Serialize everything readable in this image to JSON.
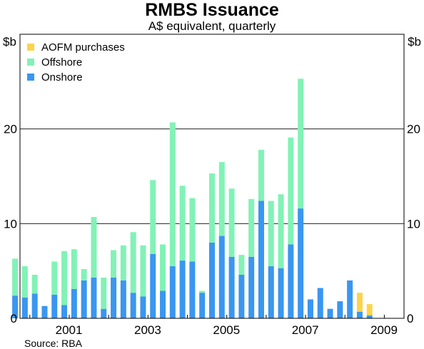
{
  "chart_data": {
    "type": "bar",
    "stacked": true,
    "title": "RMBS Issuance",
    "subtitle": "A$ equivalent, quarterly",
    "ylabel_left": "$b",
    "ylabel_right": "$b",
    "ylim": [
      0,
      30
    ],
    "yticks": [
      0,
      10,
      20
    ],
    "grid": true,
    "legend_position": "top-left",
    "x_year_range": [
      1999.75,
      2009.5
    ],
    "xticks": [
      "2001",
      "2003",
      "2005",
      "2007",
      "2009"
    ],
    "xtick_years": [
      2001,
      2003,
      2005,
      2007,
      2009
    ],
    "x": [
      "1999Q3",
      "1999Q4",
      "2000Q1",
      "2000Q2",
      "2000Q3",
      "2000Q4",
      "2001Q1",
      "2001Q2",
      "2001Q3",
      "2001Q4",
      "2002Q1",
      "2002Q2",
      "2002Q3",
      "2002Q4",
      "2003Q1",
      "2003Q2",
      "2003Q3",
      "2003Q4",
      "2004Q1",
      "2004Q2",
      "2004Q3",
      "2004Q4",
      "2005Q1",
      "2005Q2",
      "2005Q3",
      "2005Q4",
      "2006Q1",
      "2006Q2",
      "2006Q3",
      "2006Q4",
      "2007Q1",
      "2007Q2",
      "2007Q3",
      "2007Q4",
      "2008Q1",
      "2008Q2",
      "2008Q3",
      "2008Q4",
      "2009Q1"
    ],
    "series": [
      {
        "name": "Onshore",
        "color": "#3a96f0",
        "values": [
          2.4,
          2.2,
          2.6,
          1.3,
          2.5,
          1.4,
          3.1,
          4.0,
          4.3,
          1.0,
          4.3,
          4.0,
          2.7,
          2.3,
          6.8,
          2.9,
          5.5,
          6.1,
          6.0,
          2.7,
          8.0,
          8.7,
          6.5,
          4.6,
          6.5,
          12.4,
          5.5,
          5.3,
          7.8,
          11.6,
          2.0,
          3.2,
          1.0,
          1.8,
          4.0,
          0.7,
          0.3,
          0.0,
          0.0
        ]
      },
      {
        "name": "Offshore",
        "color": "#82f2b6",
        "values": [
          3.9,
          3.3,
          2.0,
          0.0,
          3.5,
          5.7,
          4.2,
          1.2,
          6.4,
          3.3,
          2.9,
          3.7,
          6.4,
          5.4,
          7.8,
          4.9,
          15.2,
          7.9,
          6.7,
          0.2,
          7.3,
          7.8,
          7.2,
          2.1,
          6.1,
          5.4,
          6.9,
          7.8,
          11.3,
          13.7,
          0.0,
          0.0,
          0.0,
          0.0,
          0.0,
          0.0,
          0.0,
          0.0,
          0.0
        ]
      },
      {
        "name": "AOFM purchases",
        "color": "#fcd44b",
        "values": [
          0,
          0,
          0,
          0,
          0,
          0,
          0,
          0,
          0,
          0,
          0,
          0,
          0,
          0,
          0,
          0,
          0,
          0,
          0,
          0,
          0,
          0,
          0,
          0,
          0,
          0,
          0,
          0,
          0,
          0,
          0,
          0,
          0,
          0,
          0,
          2.0,
          1.2,
          0,
          0
        ]
      }
    ],
    "legend_order": [
      "AOFM purchases",
      "Offshore",
      "Onshore"
    ],
    "source": "Source: RBA"
  }
}
